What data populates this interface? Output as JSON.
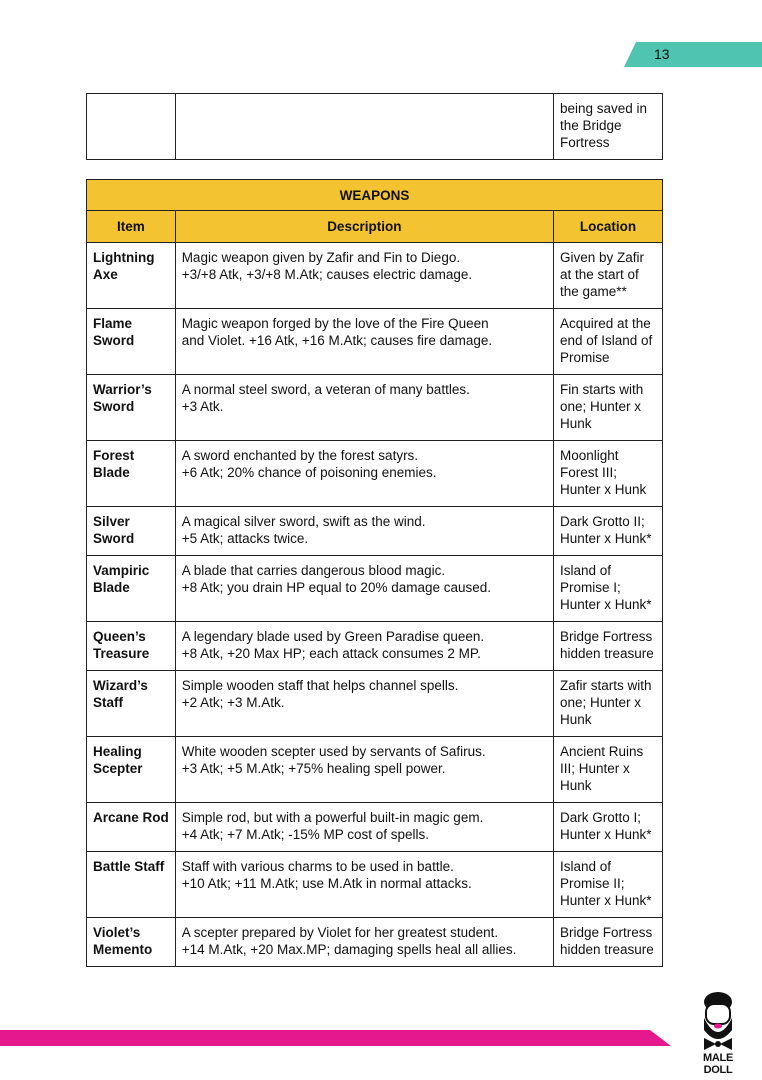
{
  "page_number": "13",
  "top_table": {
    "location_lines": [
      "being saved in",
      "the Bridge",
      "Fortress"
    ]
  },
  "weapons": {
    "title": "WEAPONS",
    "headers": [
      "Item",
      "Description",
      "Location"
    ],
    "rows": [
      {
        "item": [
          "Lightning",
          "Axe"
        ],
        "desc": [
          "Magic weapon given by Zafir and Fin to Diego.",
          "+3/+8 Atk, +3/+8 M.Atk; causes electric damage."
        ],
        "loc": [
          "Given by Zafir",
          "at the start of",
          "the game**"
        ]
      },
      {
        "item": [
          "Flame",
          "Sword"
        ],
        "desc": [
          "Magic weapon forged by the love of the Fire Queen",
          "and Violet. +16 Atk, +16 M.Atk; causes fire damage."
        ],
        "loc": [
          "Acquired at the",
          "end of Island of",
          "Promise"
        ]
      },
      {
        "item": [
          "Warrior’s",
          "Sword"
        ],
        "desc": [
          "A normal steel sword, a veteran of many battles.",
          "+3 Atk."
        ],
        "loc": [
          "Fin starts with",
          "one; Hunter x",
          "Hunk"
        ]
      },
      {
        "item": [
          "Forest",
          "Blade"
        ],
        "desc": [
          "A sword enchanted by the forest satyrs.",
          "+6 Atk; 20% chance of poisoning enemies."
        ],
        "loc": [
          "Moonlight",
          "Forest III;",
          "Hunter x Hunk"
        ]
      },
      {
        "item": [
          "Silver",
          "Sword"
        ],
        "desc": [
          "A magical silver sword, swift as the wind.",
          "+5 Atk; attacks twice."
        ],
        "loc": [
          "Dark Grotto II;",
          "Hunter x Hunk*"
        ]
      },
      {
        "item": [
          "Vampiric",
          "Blade"
        ],
        "desc": [
          "A blade that carries dangerous blood magic.",
          "+8 Atk; you drain HP equal to 20% damage caused."
        ],
        "loc": [
          "Island of",
          "Promise I;",
          "Hunter x Hunk*"
        ]
      },
      {
        "item": [
          "Queen’s",
          "Treasure"
        ],
        "desc": [
          "A legendary blade used by Green Paradise queen.",
          "+8 Atk, +20 Max HP; each attack consumes 2 MP."
        ],
        "loc": [
          "Bridge Fortress",
          "hidden treasure"
        ]
      },
      {
        "item": [
          "Wizard’s",
          "Staff"
        ],
        "desc": [
          "Simple wooden staff that helps channel spells.",
          "+2 Atk; +3 M.Atk."
        ],
        "loc": [
          "Zafir starts with",
          "one; Hunter x",
          "Hunk"
        ]
      },
      {
        "item": [
          "Healing",
          "Scepter"
        ],
        "desc": [
          "White wooden scepter used by servants of Safirus.",
          "+3 Atk; +5 M.Atk; +75% healing spell power."
        ],
        "loc": [
          "Ancient Ruins",
          "III; Hunter x",
          "Hunk"
        ]
      },
      {
        "item": [
          "Arcane Rod"
        ],
        "desc": [
          "Simple rod, but with a powerful built-in magic gem.",
          "+4 Atk; +7 M.Atk; -15% MP cost of spells."
        ],
        "loc": [
          "Dark Grotto I;",
          "Hunter x Hunk*"
        ]
      },
      {
        "item": [
          "Battle Staff"
        ],
        "desc": [
          "Staff with various charms to be used in battle.",
          "+10 Atk; +11 M.Atk; use M.Atk in normal attacks."
        ],
        "loc": [
          "Island of",
          "Promise II;",
          "Hunter x Hunk*"
        ]
      },
      {
        "item": [
          "Violet’s",
          "Memento"
        ],
        "desc": [
          "A scepter prepared by Violet for her greatest student.",
          "+14 M.Atk, +20 Max.MP; damaging spells heal all allies."
        ],
        "loc": [
          "Bridge Fortress",
          "hidden treasure"
        ]
      }
    ]
  },
  "logo": {
    "text": "MALE DOLL"
  },
  "colors": {
    "teal": "#4fc4b0",
    "yellow": "#f3c332",
    "pink": "#e5188d"
  }
}
